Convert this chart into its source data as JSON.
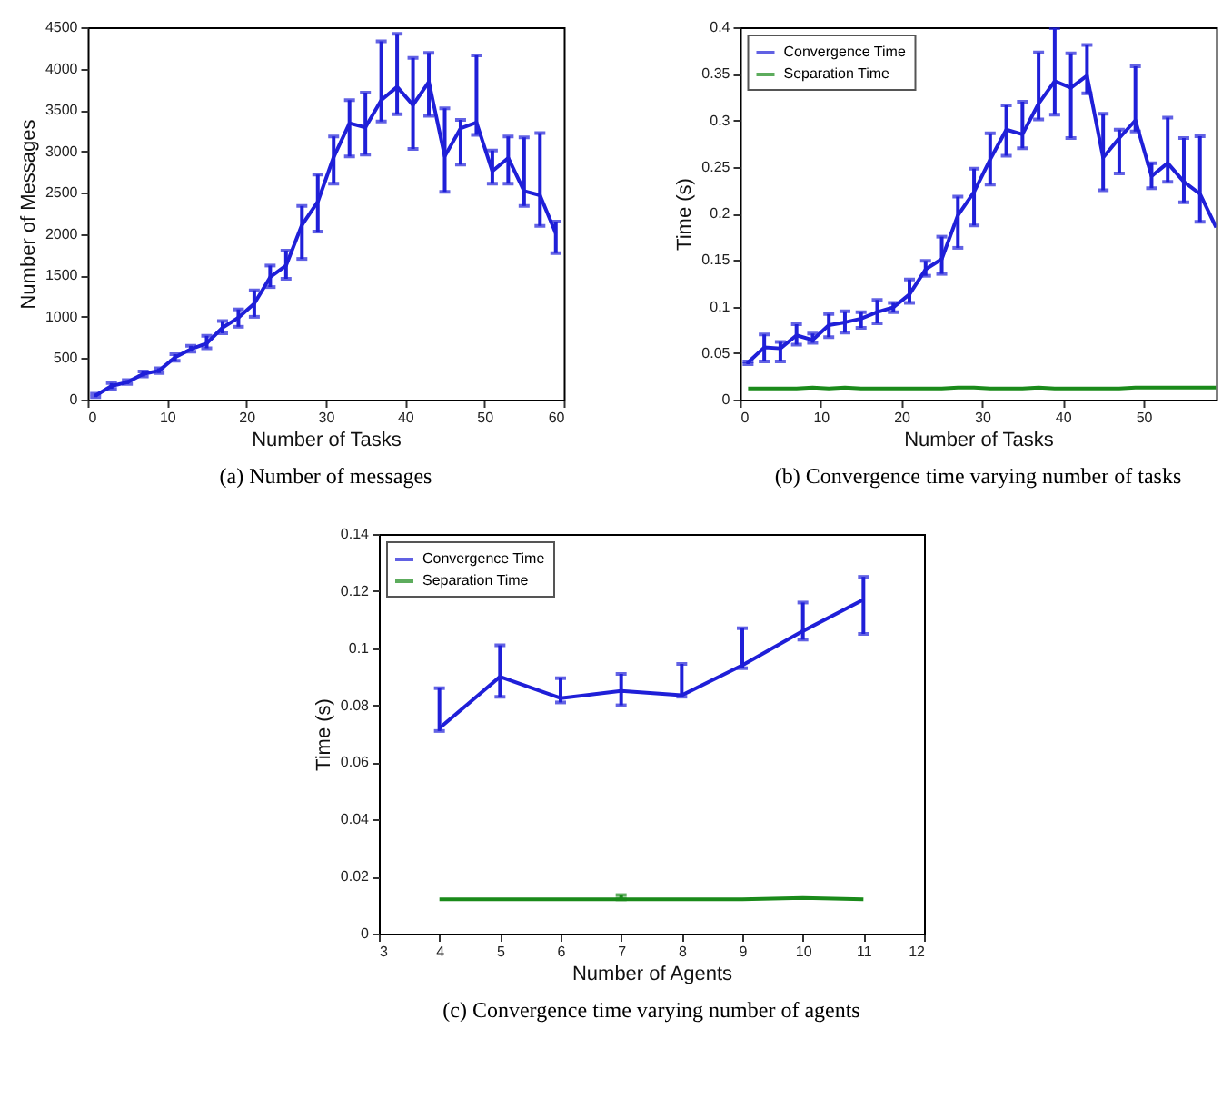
{
  "chart_data": [
    {
      "type": "line",
      "title": "(a) Number of messages",
      "xlabel": "Number of Tasks",
      "ylabel": "Number of Messages",
      "x": [
        1,
        3,
        5,
        7,
        9,
        11,
        13,
        15,
        17,
        19,
        21,
        23,
        25,
        27,
        29,
        31,
        33,
        35,
        37,
        39,
        41,
        43,
        45,
        47,
        49,
        51,
        53,
        55,
        57,
        59
      ],
      "series": [
        {
          "color": "#1f1fd8",
          "values": [
            50,
            165,
            210,
            310,
            350,
            510,
            610,
            680,
            870,
            990,
            1160,
            1480,
            1620,
            2110,
            2390,
            2930,
            3340,
            3290,
            3620,
            3780,
            3560,
            3840,
            2940,
            3280,
            3350,
            2760,
            2920,
            2520,
            2470,
            2010
          ],
          "errors": [
            [
              30,
              70
            ],
            [
              130,
              200
            ],
            [
              190,
              235
            ],
            [
              280,
              340
            ],
            [
              320,
              380
            ],
            [
              470,
              550
            ],
            [
              580,
              650
            ],
            [
              620,
              770
            ],
            [
              800,
              950
            ],
            [
              880,
              1090
            ],
            [
              1000,
              1320
            ],
            [
              1360,
              1620
            ],
            [
              1460,
              1800
            ],
            [
              1700,
              2340
            ],
            [
              2030,
              2720
            ],
            [
              2610,
              3180
            ],
            [
              2940,
              3620
            ],
            [
              2960,
              3710
            ],
            [
              3360,
              4330
            ],
            [
              3450,
              4420
            ],
            [
              3030,
              4130
            ],
            [
              3430,
              4190
            ],
            [
              2510,
              3520
            ],
            [
              2840,
              3380
            ],
            [
              3200,
              4160
            ],
            [
              2610,
              3010
            ],
            [
              2610,
              3180
            ],
            [
              2340,
              3170
            ],
            [
              2100,
              3220
            ],
            [
              1770,
              2150
            ]
          ]
        }
      ],
      "xlim": [
        0,
        60
      ],
      "xticks": [
        0,
        10,
        20,
        30,
        40,
        50,
        60
      ],
      "ylim": [
        0,
        4500
      ],
      "yticks": [
        0,
        500,
        1000,
        1500,
        2000,
        2500,
        3000,
        3500,
        4000,
        4500
      ],
      "grid": false,
      "legend": false,
      "marker": "none",
      "line_style": "solid"
    },
    {
      "type": "line",
      "title": "(b) Convergence time varying number of tasks",
      "xlabel": "Number of Tasks",
      "ylabel": "Time (s)",
      "x": [
        1,
        3,
        5,
        7,
        9,
        11,
        13,
        15,
        17,
        19,
        21,
        23,
        25,
        27,
        29,
        31,
        33,
        35,
        37,
        39,
        41,
        43,
        45,
        47,
        49,
        51,
        53,
        55,
        57,
        59
      ],
      "series": [
        {
          "name": "Convergence Time",
          "color": "#1f1fd8",
          "values": [
            0.04,
            0.056,
            0.055,
            0.069,
            0.064,
            0.08,
            0.083,
            0.087,
            0.094,
            0.099,
            0.113,
            0.14,
            0.151,
            0.198,
            0.223,
            0.258,
            0.29,
            0.285,
            0.318,
            0.342,
            0.335,
            0.348,
            0.26,
            0.281,
            0.3,
            0.24,
            0.254,
            0.234,
            0.221,
            0.185
          ],
          "errors": [
            [
              0.038,
              0.041
            ],
            [
              0.041,
              0.07
            ],
            [
              0.041,
              0.062
            ],
            [
              0.059,
              0.081
            ],
            [
              0.061,
              0.071
            ],
            [
              0.067,
              0.092
            ],
            [
              0.072,
              0.095
            ],
            [
              0.077,
              0.094
            ],
            [
              0.082,
              0.107
            ],
            [
              0.094,
              0.104
            ],
            [
              0.104,
              0.129
            ],
            [
              0.133,
              0.149
            ],
            [
              0.135,
              0.175
            ],
            [
              0.163,
              0.218
            ],
            [
              0.187,
              0.248
            ],
            [
              0.231,
              0.286
            ],
            [
              0.262,
              0.316
            ],
            [
              0.27,
              0.32
            ],
            [
              0.301,
              0.373
            ],
            [
              0.306,
              0.399
            ],
            [
              0.281,
              0.372
            ],
            [
              0.329,
              0.381
            ],
            [
              0.225,
              0.307
            ],
            [
              0.243,
              0.29
            ],
            [
              0.288,
              0.358
            ],
            [
              0.227,
              0.254
            ],
            [
              0.234,
              0.303
            ],
            [
              0.212,
              0.281
            ],
            [
              0.191,
              0.283
            ],
            null
          ]
        },
        {
          "name": "Separation Time",
          "color": "#1a8a1a",
          "values": [
            0.012,
            0.012,
            0.012,
            0.012,
            0.013,
            0.012,
            0.013,
            0.012,
            0.012,
            0.012,
            0.012,
            0.012,
            0.012,
            0.013,
            0.013,
            0.012,
            0.012,
            0.012,
            0.013,
            0.012,
            0.012,
            0.012,
            0.012,
            0.012,
            0.013,
            0.013,
            0.013,
            0.013,
            0.013,
            0.013
          ]
        }
      ],
      "xlim": [
        0,
        59
      ],
      "xticks": [
        0,
        10,
        20,
        30,
        40,
        50
      ],
      "ylim": [
        0,
        0.4
      ],
      "yticks": [
        0,
        0.05,
        0.1,
        0.15,
        0.2,
        0.25,
        0.3,
        0.35,
        0.4
      ],
      "grid": false,
      "legend": "top left",
      "marker": "none",
      "line_style": "solid"
    },
    {
      "type": "line",
      "title": "(c) Convergence time varying number of agents",
      "xlabel": "Number of Agents",
      "ylabel": "Time (s)",
      "x": [
        4,
        5,
        6,
        7,
        8,
        9,
        10,
        11
      ],
      "series": [
        {
          "name": "Convergence Time",
          "color": "#1f1fd8",
          "values": [
            0.072,
            0.09,
            0.0825,
            0.085,
            0.0835,
            0.094,
            0.106,
            0.117
          ],
          "errors": [
            [
              0.071,
              0.086
            ],
            [
              0.083,
              0.101
            ],
            [
              0.081,
              0.0895
            ],
            [
              0.08,
              0.091
            ],
            [
              0.083,
              0.0945
            ],
            [
              0.093,
              0.107
            ],
            [
              0.103,
              0.116
            ],
            [
              0.105,
              0.125
            ]
          ]
        },
        {
          "name": "Separation Time",
          "color": "#1a8a1a",
          "values": [
            0.012,
            0.012,
            0.012,
            0.012,
            0.012,
            0.012,
            0.0125,
            0.012
          ],
          "errors": [
            null,
            null,
            null,
            [
              0.012,
              0.0135
            ],
            null,
            null,
            null,
            null
          ]
        }
      ],
      "xlim": [
        3,
        12
      ],
      "xticks": [
        3,
        4,
        5,
        6,
        7,
        8,
        9,
        10,
        11,
        12
      ],
      "ylim": [
        0,
        0.14
      ],
      "yticks": [
        0,
        0.02,
        0.04,
        0.06,
        0.08,
        0.1,
        0.12,
        0.14
      ],
      "grid": false,
      "legend": "top left",
      "marker": "none",
      "line_style": "solid"
    }
  ]
}
